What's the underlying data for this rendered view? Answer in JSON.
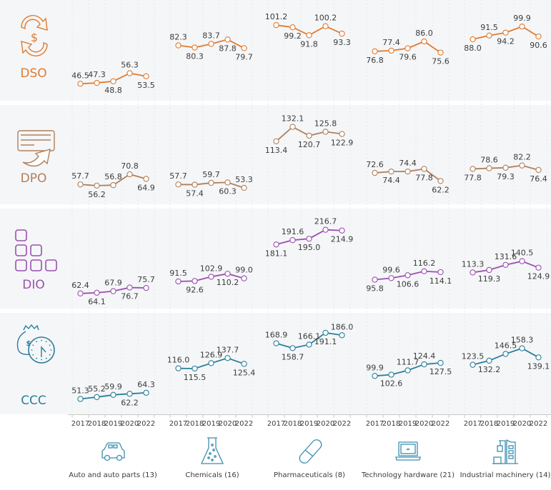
{
  "chart_data": {
    "type": "line",
    "title": "",
    "layout": "small-multiples",
    "x": [
      "2017",
      "2018",
      "2019",
      "2020",
      "2022"
    ],
    "xlabel": "",
    "ylabel": "",
    "grid": true,
    "legend": "none",
    "industries": [
      {
        "name": "Auto and auto parts (13)",
        "icon": "car-icon"
      },
      {
        "name": "Chemicals (16)",
        "icon": "flask-icon"
      },
      {
        "name": "Pharmaceuticals (8)",
        "icon": "pill-capsule-icon"
      },
      {
        "name": "Technology hardware (21)",
        "icon": "laptop-icon"
      },
      {
        "name": "Industrial machinery (14)",
        "icon": "factory-icon"
      }
    ],
    "metrics": [
      {
        "name": "DSO",
        "icon": "cash-cycle-dollar-icon",
        "color": "#e07b2e",
        "ylim": [
          40,
          110
        ],
        "series": [
          {
            "industry": "Auto and auto parts (13)",
            "values": [
              46.5,
              47.3,
              48.8,
              56.3,
              53.5
            ]
          },
          {
            "industry": "Chemicals (16)",
            "values": [
              82.3,
              80.3,
              83.7,
              87.8,
              79.7
            ]
          },
          {
            "industry": "Pharmaceuticals (8)",
            "values": [
              101.2,
              99.2,
              91.8,
              100.2,
              93.3
            ]
          },
          {
            "industry": "Technology hardware (21)",
            "values": [
              76.8,
              77.4,
              79.6,
              86.0,
              75.6
            ]
          },
          {
            "industry": "Industrial machinery (14)",
            "values": [
              88.0,
              91.5,
              94.2,
              99.9,
              90.6
            ]
          }
        ]
      },
      {
        "name": "DPO",
        "icon": "invoice-arrow-icon",
        "color": "#b0805a",
        "ylim": [
          45,
          140
        ],
        "series": [
          {
            "industry": "Auto and auto parts (13)",
            "values": [
              57.7,
              56.2,
              56.8,
              70.8,
              64.9
            ]
          },
          {
            "industry": "Chemicals (16)",
            "values": [
              57.7,
              57.4,
              59.7,
              60.3,
              53.3
            ]
          },
          {
            "industry": "Pharmaceuticals (8)",
            "values": [
              113.4,
              132.1,
              120.7,
              125.8,
              122.9
            ]
          },
          {
            "industry": "Technology hardware (21)",
            "values": [
              72.6,
              74.4,
              74.4,
              77.8,
              62.2
            ]
          },
          {
            "industry": "Industrial machinery (14)",
            "values": [
              77.8,
              78.6,
              79.3,
              82.2,
              76.4
            ]
          }
        ]
      },
      {
        "name": "DIO",
        "icon": "inventory-boxes-icon",
        "color": "#9b4fb0",
        "ylim": [
          50,
          230
        ],
        "series": [
          {
            "industry": "Auto and auto parts (13)",
            "values": [
              62.4,
              64.1,
              67.9,
              76.7,
              75.7
            ]
          },
          {
            "industry": "Chemicals (16)",
            "values": [
              91.5,
              92.6,
              102.9,
              110.2,
              99.0
            ]
          },
          {
            "industry": "Pharmaceuticals (8)",
            "values": [
              181.1,
              191.6,
              195.0,
              216.7,
              214.9
            ]
          },
          {
            "industry": "Technology hardware (21)",
            "values": [
              95.8,
              99.6,
              106.6,
              116.2,
              114.1
            ]
          },
          {
            "industry": "Industrial machinery (14)",
            "values": [
              113.3,
              119.3,
              131.6,
              140.5,
              124.9
            ]
          }
        ]
      },
      {
        "name": "CCC",
        "icon": "money-bag-clock-icon",
        "color": "#2a7f9a",
        "ylim": [
          40,
          200
        ],
        "series": [
          {
            "industry": "Auto and auto parts (13)",
            "values": [
              51.3,
              55.2,
              59.9,
              62.2,
              64.3
            ]
          },
          {
            "industry": "Chemicals (16)",
            "values": [
              116.0,
              115.5,
              126.9,
              137.7,
              125.4
            ]
          },
          {
            "industry": "Pharmaceuticals (8)",
            "values": [
              168.9,
              158.7,
              166.1,
              191.1,
              186.0
            ]
          },
          {
            "industry": "Technology hardware (21)",
            "values": [
              99.9,
              102.6,
              111.7,
              124.4,
              127.5
            ]
          },
          {
            "industry": "Industrial machinery (14)",
            "values": [
              123.5,
              132.2,
              146.5,
              158.3,
              139.1
            ]
          }
        ]
      }
    ]
  },
  "colors": {
    "panel_background": "#f5f6f8",
    "grid": "#e2e4e8",
    "axis": "#c8c8c8",
    "text": "#3c3c3c",
    "industry_icon": "#3a8fb0"
  }
}
